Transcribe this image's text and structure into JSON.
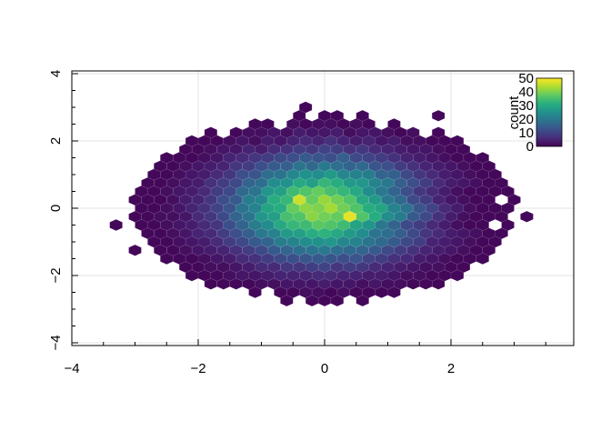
{
  "chart_data": {
    "type": "heatmap",
    "subtype": "hexbin",
    "title": "",
    "xlabel": "",
    "ylabel": "",
    "xlim": [
      -4,
      3.94
    ],
    "ylim": [
      -4.08,
      4.08
    ],
    "x_ticks": [
      "-4",
      "-2",
      "0",
      "2"
    ],
    "x_tick_values": [
      -4,
      -2,
      0,
      2
    ],
    "y_ticks": [
      "-4",
      "-2",
      "0",
      "2",
      "4"
    ],
    "y_tick_values": [
      -4,
      -2,
      0,
      2,
      4
    ],
    "grid": true,
    "colormap": "viridis",
    "colorbar": {
      "title": "count",
      "range": [
        0,
        50
      ],
      "ticks": [
        "0",
        "10",
        "20",
        "30",
        "40",
        "50"
      ],
      "tick_values": [
        0,
        10,
        20,
        30,
        40,
        50
      ],
      "placement": "top-right"
    },
    "bin_dx": 0.2,
    "bin_dy": 0.25,
    "rows": [
      {
        "y": 3.0,
        "x0": -0.3,
        "counts": [
          1
        ]
      },
      {
        "y": 2.75,
        "x0": -0.4,
        "counts": [
          1,
          0,
          1,
          1,
          0,
          1
        ]
      },
      {
        "y": 2.5,
        "x0": -1.1,
        "counts": [
          1,
          1,
          0,
          2,
          1,
          2,
          2,
          1,
          2,
          1,
          0,
          1
        ]
      },
      {
        "y": 2.25,
        "x0": -1.8,
        "counts": [
          1,
          0,
          1,
          2,
          2,
          3,
          2,
          4,
          3,
          3,
          4,
          2,
          3,
          3,
          2,
          1,
          2,
          0,
          1
        ]
      },
      {
        "y": 2.0,
        "x0": -2.1,
        "counts": [
          1,
          1,
          1,
          2,
          3,
          2,
          4,
          3,
          5,
          6,
          5,
          7,
          5,
          4,
          5,
          3,
          4,
          2,
          2,
          1,
          1,
          1
        ]
      },
      {
        "y": 1.75,
        "x0": -2.2,
        "counts": [
          1,
          1,
          2,
          3,
          3,
          5,
          4,
          6,
          7,
          9,
          8,
          10,
          9,
          7,
          8,
          6,
          5,
          4,
          3,
          3,
          2,
          1,
          1
        ]
      },
      {
        "y": 1.5,
        "x0": -2.5,
        "counts": [
          1,
          1,
          1,
          2,
          3,
          5,
          6,
          8,
          9,
          11,
          12,
          14,
          13,
          12,
          15,
          11,
          10,
          9,
          7,
          5,
          4,
          3,
          2,
          1,
          1,
          1
        ]
      },
      {
        "y": 1.25,
        "x0": -2.6,
        "counts": [
          1,
          1,
          2,
          3,
          4,
          5,
          8,
          9,
          12,
          14,
          15,
          19,
          17,
          20,
          18,
          16,
          17,
          13,
          12,
          9,
          7,
          5,
          4,
          3,
          2,
          1,
          1
        ]
      },
      {
        "y": 1.0,
        "x0": -2.7,
        "counts": [
          1,
          1,
          2,
          3,
          4,
          6,
          8,
          12,
          13,
          18,
          19,
          23,
          25,
          24,
          27,
          23,
          22,
          21,
          16,
          15,
          11,
          8,
          6,
          4,
          3,
          2,
          1,
          1
        ]
      },
      {
        "y": 0.75,
        "x0": -2.8,
        "counts": [
          1,
          1,
          2,
          3,
          4,
          7,
          9,
          11,
          16,
          18,
          24,
          25,
          30,
          28,
          33,
          31,
          27,
          26,
          22,
          20,
          15,
          12,
          9,
          6,
          4,
          3,
          2,
          1,
          1
        ]
      },
      {
        "y": 0.5,
        "x0": -2.9,
        "counts": [
          1,
          1,
          2,
          3,
          4,
          6,
          9,
          11,
          17,
          19,
          26,
          28,
          34,
          36,
          38,
          35,
          33,
          30,
          24,
          20,
          16,
          12,
          8,
          6,
          4,
          2,
          1,
          1,
          1,
          1
        ]
      },
      {
        "y": 0.25,
        "x0": -3.0,
        "counts": [
          1,
          1,
          1,
          2,
          4,
          5,
          8,
          12,
          14,
          21,
          23,
          31,
          33,
          46,
          38,
          42,
          39,
          36,
          30,
          27,
          20,
          17,
          11,
          9,
          5,
          3,
          2,
          1,
          1,
          0,
          1
        ]
      },
      {
        "y": 0.0,
        "x0": -2.9,
        "counts": [
          1,
          1,
          2,
          3,
          5,
          7,
          10,
          13,
          19,
          22,
          29,
          31,
          38,
          41,
          40,
          43,
          39,
          36,
          31,
          29,
          22,
          19,
          13,
          10,
          6,
          4,
          2,
          1,
          1,
          1
        ]
      },
      {
        "y": -0.25,
        "x0": -3.0,
        "counts": [
          1,
          1,
          2,
          2,
          3,
          6,
          8,
          11,
          16,
          19,
          26,
          28,
          35,
          36,
          41,
          39,
          38,
          48,
          36,
          31,
          24,
          21,
          14,
          11,
          7,
          4,
          2,
          1,
          1,
          1,
          0
        ]
      },
      {
        "y": -0.5,
        "x0": -2.9,
        "counts": [
          1,
          1,
          2,
          3,
          4,
          6,
          8,
          12,
          16,
          21,
          24,
          30,
          33,
          34,
          37,
          36,
          34,
          29,
          26,
          20,
          16,
          11,
          9,
          6,
          4,
          2,
          1,
          1,
          0,
          1
        ]
      },
      {
        "y": -0.75,
        "x0": -2.8,
        "counts": [
          1,
          1,
          2,
          3,
          5,
          6,
          9,
          12,
          15,
          20,
          22,
          27,
          28,
          31,
          32,
          30,
          27,
          24,
          19,
          18,
          15,
          11,
          8,
          6,
          4,
          3,
          2,
          1,
          1
        ]
      },
      {
        "y": -1.0,
        "x0": -2.7,
        "counts": [
          1,
          1,
          2,
          3,
          4,
          6,
          9,
          11,
          14,
          16,
          21,
          22,
          24,
          25,
          26,
          23,
          22,
          19,
          17,
          14,
          11,
          9,
          5,
          4,
          3,
          2,
          1,
          1
        ]
      },
      {
        "y": -1.25,
        "x0": -2.6,
        "counts": [
          1,
          1,
          2,
          3,
          4,
          5,
          7,
          9,
          11,
          14,
          16,
          18,
          19,
          20,
          18,
          17,
          16,
          14,
          11,
          9,
          7,
          5,
          4,
          3,
          2,
          1,
          1
        ]
      },
      {
        "y": -1.5,
        "x0": -2.5,
        "counts": [
          1,
          1,
          1,
          2,
          3,
          4,
          6,
          7,
          9,
          11,
          12,
          13,
          14,
          13,
          12,
          13,
          10,
          9,
          7,
          6,
          4,
          3,
          2,
          1,
          1,
          1
        ]
      },
      {
        "y": -1.75,
        "x0": -2.2,
        "counts": [
          1,
          1,
          2,
          2,
          3,
          4,
          6,
          6,
          8,
          8,
          9,
          10,
          8,
          9,
          8,
          6,
          5,
          4,
          3,
          2,
          2,
          1,
          1
        ]
      },
      {
        "y": -2.0,
        "x0": -2.1,
        "counts": [
          1,
          1,
          1,
          2,
          3,
          3,
          4,
          5,
          5,
          5,
          6,
          6,
          5,
          5,
          4,
          4,
          3,
          2,
          2,
          1,
          1,
          1
        ]
      },
      {
        "y": -2.25,
        "x0": -1.8,
        "counts": [
          1,
          1,
          1,
          1,
          2,
          2,
          3,
          3,
          3,
          4,
          3,
          3,
          2,
          3,
          2,
          2,
          1,
          1,
          1
        ]
      },
      {
        "y": -2.5,
        "x0": -1.1,
        "counts": [
          1,
          0,
          1,
          1,
          2,
          2,
          1,
          2,
          1,
          1,
          1,
          1
        ]
      },
      {
        "y": -2.75,
        "x0": -0.6,
        "counts": [
          1,
          0,
          1,
          1,
          1,
          0,
          1
        ]
      },
      {
        "y": -0.25,
        "x0": 3.2,
        "counts": [
          1
        ]
      },
      {
        "y": -0.5,
        "x0": -3.3,
        "counts": [
          1
        ]
      },
      {
        "y": -1.25,
        "x0": -3.0,
        "counts": [
          1
        ]
      },
      {
        "y": 2.75,
        "x0": 1.8,
        "counts": [
          1
        ]
      }
    ]
  }
}
